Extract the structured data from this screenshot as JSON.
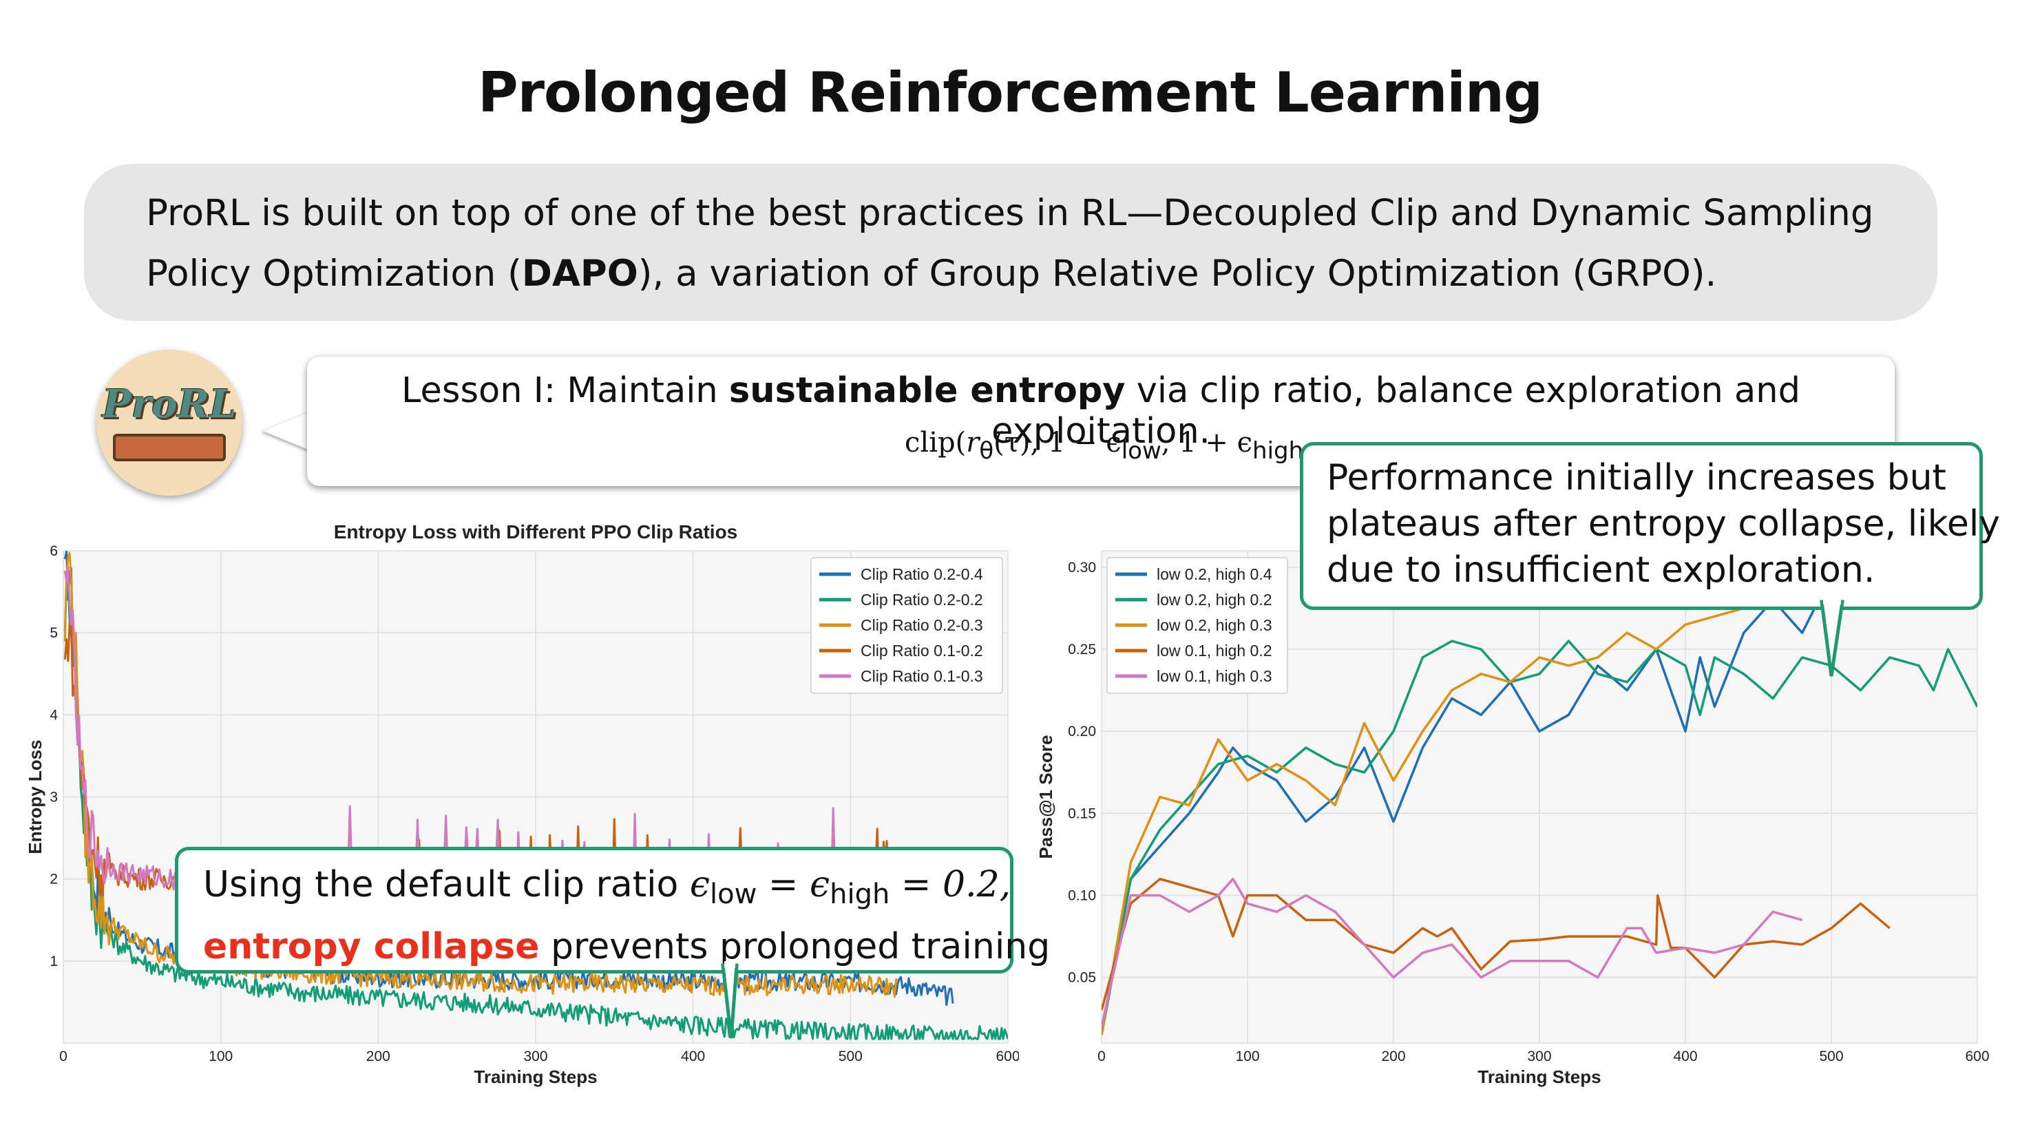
{
  "title": "Prolonged Reinforcement Learning",
  "intro": {
    "line1": "ProRL is built on top of one of the best practices in RL—Decoupled Clip and Dynamic Sampling",
    "line2_pre": "Policy Optimization (",
    "line2_bold": "DAPO",
    "line2_post": "), a variation of Group Relative Policy Optimization (GRPO)."
  },
  "logo": {
    "text": "ProRL"
  },
  "lesson": {
    "pre": "Lesson I: Maintain ",
    "bold": "sustainable entropy",
    "post": " via clip ratio, balance exploration and exploitation.",
    "formula_pre": "clip(",
    "formula_r": "r",
    "formula_theta": "θ",
    "formula_tau": "(τ), 1 − ϵ",
    "formula_low": "low",
    "formula_mid": ", 1 + ϵ",
    "formula_high": "high"
  },
  "callout_perf": {
    "line1": "Performance initially increases but",
    "line2": "plateaus after entropy collapse, likely",
    "line3": "due to insufficient exploration."
  },
  "callout_clip": {
    "line1_pre": "Using the default clip ratio ",
    "eps1": "ϵ",
    "sub1": "low",
    "eq1": " = ϵ",
    "sub2": "high",
    "eq2": " = 0.2,",
    "red": "entropy collapse",
    "line2_post": " prevents prolonged training"
  },
  "colors": {
    "blue": "#1f6fb2",
    "green": "#129d77",
    "orange": "#de9214",
    "darkorange": "#c8620f",
    "pink": "#d17ac2",
    "callout_border": "#1e9a6e",
    "red": "#e8311c"
  },
  "chart_data": [
    {
      "type": "line",
      "title": "Entropy Loss with Different PPO Clip Ratios",
      "xlabel": "Training Steps",
      "ylabel": "Entropy Loss",
      "xlim": [
        0,
        600
      ],
      "ylim": [
        0,
        6
      ],
      "xticks": [
        "0",
        "100",
        "200",
        "300",
        "400",
        "500",
        "600"
      ],
      "yticks": [
        "1",
        "2",
        "3",
        "4",
        "5",
        "6"
      ],
      "grid": true,
      "legend_position": "top-right",
      "series": [
        {
          "name": "Clip Ratio 0.2-0.4",
          "color": "#1f6fb2",
          "x": [
            1,
            4,
            8,
            12,
            18,
            25,
            35,
            50,
            70,
            100,
            150,
            200,
            250,
            300,
            350,
            400,
            450,
            500,
            540,
            565
          ],
          "y": [
            5.6,
            5.8,
            4.5,
            3.2,
            2.1,
            1.6,
            1.35,
            1.2,
            1.1,
            0.98,
            0.88,
            0.8,
            0.78,
            0.77,
            0.8,
            0.75,
            0.75,
            0.74,
            0.7,
            0.55
          ]
        },
        {
          "name": "Clip Ratio 0.2-0.2",
          "color": "#129d77",
          "x": [
            1,
            4,
            8,
            12,
            18,
            25,
            35,
            50,
            70,
            100,
            150,
            200,
            250,
            300,
            350,
            400,
            450,
            500,
            550,
            600
          ],
          "y": [
            5.3,
            5.5,
            4.3,
            3.0,
            1.8,
            1.45,
            1.2,
            1.0,
            0.85,
            0.75,
            0.62,
            0.55,
            0.5,
            0.42,
            0.32,
            0.22,
            0.16,
            0.12,
            0.1,
            0.09
          ]
        },
        {
          "name": "Clip Ratio 0.2-0.3",
          "color": "#de9214",
          "x": [
            1,
            3,
            6,
            10,
            15,
            22,
            30,
            45,
            60,
            80,
            100,
            150,
            200,
            250,
            300,
            350,
            400,
            450,
            500,
            530
          ],
          "y": [
            5.0,
            6.0,
            5.4,
            3.9,
            2.3,
            1.7,
            1.45,
            1.25,
            1.1,
            1.0,
            0.95,
            0.85,
            0.8,
            0.76,
            0.72,
            0.72,
            0.7,
            0.7,
            0.72,
            0.68
          ]
        },
        {
          "name": "Clip Ratio 0.1-0.2",
          "color": "#c8620f",
          "x": [
            1,
            4,
            8,
            12,
            18,
            25,
            35,
            50,
            70,
            100,
            150,
            200,
            250,
            300,
            350,
            400,
            450,
            500,
            540
          ],
          "y": [
            4.6,
            5.2,
            4.0,
            3.2,
            2.4,
            2.1,
            2.05,
            2.0,
            2.0,
            2.0,
            2.0,
            2.02,
            2.05,
            2.0,
            2.02,
            2.05,
            2.05,
            2.05,
            2.05
          ]
        },
        {
          "name": "Clip Ratio 0.1-0.3",
          "color": "#d17ac2",
          "x": [
            1,
            4,
            8,
            12,
            18,
            25,
            35,
            50,
            70,
            100,
            150,
            200,
            250,
            300,
            350,
            400,
            450,
            500
          ],
          "y": [
            5.5,
            5.7,
            4.1,
            3.1,
            2.5,
            2.2,
            2.1,
            2.05,
            2.0,
            2.05,
            2.1,
            2.15,
            2.2,
            2.15,
            2.1,
            2.1,
            2.1,
            2.1
          ]
        }
      ]
    },
    {
      "type": "line",
      "title": "",
      "xlabel": "Training Steps",
      "ylabel": "Pass@1 Score",
      "xlim": [
        0,
        600
      ],
      "ylim": [
        0.01,
        0.31
      ],
      "xticks": [
        "0",
        "100",
        "200",
        "300",
        "400",
        "500",
        "600"
      ],
      "yticks": [
        "0.05",
        "0.10",
        "0.15",
        "0.20",
        "0.25",
        "0.30"
      ],
      "grid": true,
      "legend_position": "top-left",
      "series": [
        {
          "name": "low 0.2, high 0.4",
          "color": "#1f6fb2",
          "x": [
            0,
            20,
            40,
            60,
            80,
            90,
            100,
            120,
            140,
            160,
            180,
            200,
            220,
            240,
            260,
            280,
            300,
            320,
            340,
            360,
            380,
            400,
            410,
            420,
            440,
            460,
            480,
            500,
            520,
            540
          ],
          "y": [
            0.015,
            0.11,
            0.13,
            0.15,
            0.175,
            0.19,
            0.18,
            0.17,
            0.145,
            0.16,
            0.19,
            0.145,
            0.19,
            0.22,
            0.21,
            0.23,
            0.2,
            0.21,
            0.24,
            0.225,
            0.25,
            0.2,
            0.245,
            0.215,
            0.26,
            0.28,
            0.26,
            0.295,
            0.275,
            0.28
          ]
        },
        {
          "name": "low 0.2, high 0.2",
          "color": "#129d77",
          "x": [
            0,
            20,
            40,
            60,
            80,
            100,
            120,
            140,
            160,
            180,
            200,
            220,
            240,
            260,
            280,
            300,
            320,
            340,
            360,
            380,
            400,
            410,
            420,
            440,
            460,
            480,
            500,
            520,
            540,
            560,
            570,
            580,
            600
          ],
          "y": [
            0.015,
            0.11,
            0.14,
            0.16,
            0.18,
            0.185,
            0.175,
            0.19,
            0.18,
            0.175,
            0.2,
            0.245,
            0.255,
            0.25,
            0.23,
            0.235,
            0.255,
            0.235,
            0.23,
            0.25,
            0.24,
            0.21,
            0.245,
            0.235,
            0.22,
            0.245,
            0.24,
            0.225,
            0.245,
            0.24,
            0.225,
            0.25,
            0.215
          ]
        },
        {
          "name": "low 0.2, high 0.3",
          "color": "#de9214",
          "x": [
            0,
            20,
            40,
            60,
            80,
            100,
            120,
            140,
            160,
            180,
            200,
            220,
            240,
            260,
            280,
            300,
            320,
            340,
            360,
            380,
            400,
            420,
            440,
            460,
            480,
            500,
            520,
            540
          ],
          "y": [
            0.015,
            0.12,
            0.16,
            0.155,
            0.195,
            0.17,
            0.18,
            0.17,
            0.155,
            0.205,
            0.17,
            0.2,
            0.225,
            0.235,
            0.23,
            0.245,
            0.24,
            0.245,
            0.26,
            0.25,
            0.265,
            0.27,
            0.275,
            0.29,
            0.285,
            0.28,
            0.3,
            0.275
          ]
        },
        {
          "name": "low 0.1, high 0.2",
          "color": "#c8620f",
          "x": [
            0,
            20,
            40,
            60,
            80,
            90,
            100,
            120,
            140,
            160,
            180,
            200,
            220,
            230,
            240,
            260,
            280,
            300,
            320,
            340,
            360,
            380,
            381,
            390,
            400,
            420,
            440,
            460,
            480,
            500,
            520,
            540
          ],
          "y": [
            0.03,
            0.095,
            0.11,
            0.105,
            0.1,
            0.075,
            0.1,
            0.1,
            0.085,
            0.085,
            0.07,
            0.065,
            0.08,
            0.075,
            0.08,
            0.055,
            0.072,
            0.073,
            0.075,
            0.075,
            0.075,
            0.07,
            0.1,
            0.068,
            0.068,
            0.05,
            0.07,
            0.072,
            0.07,
            0.08,
            0.095,
            0.08
          ]
        },
        {
          "name": "low 0.1, high 0.3",
          "color": "#d17ac2",
          "x": [
            0,
            20,
            40,
            60,
            80,
            90,
            100,
            120,
            140,
            160,
            180,
            200,
            220,
            240,
            260,
            280,
            300,
            320,
            340,
            360,
            370,
            380,
            400,
            420,
            440,
            460,
            480
          ],
          "y": [
            0.02,
            0.1,
            0.1,
            0.09,
            0.1,
            0.11,
            0.095,
            0.09,
            0.1,
            0.09,
            0.07,
            0.05,
            0.065,
            0.07,
            0.05,
            0.06,
            0.06,
            0.06,
            0.05,
            0.08,
            0.08,
            0.065,
            0.068,
            0.065,
            0.07,
            0.09,
            0.085
          ]
        }
      ]
    }
  ]
}
